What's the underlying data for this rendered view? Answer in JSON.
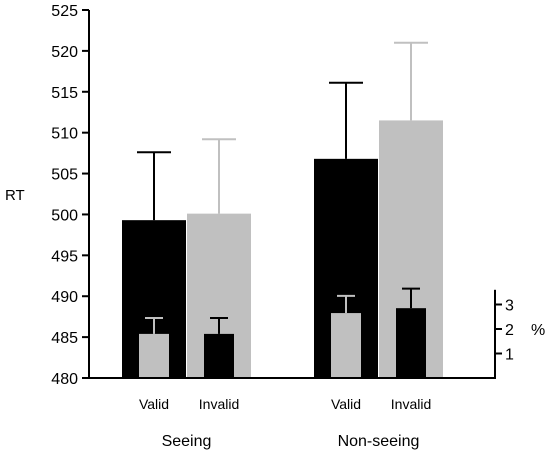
{
  "chart_data": {
    "type": "bar",
    "ylabel": "RT",
    "ylim": [
      480,
      525
    ],
    "yticks": [
      480,
      485,
      490,
      495,
      500,
      505,
      510,
      515,
      520,
      525
    ],
    "groups": [
      "Seeing",
      "Non-seeing"
    ],
    "categories": [
      "Valid",
      "Invalid"
    ],
    "series": [
      {
        "group": "Seeing",
        "category": "Valid",
        "value": 499.3,
        "error": 8.3,
        "color": "#000000"
      },
      {
        "group": "Seeing",
        "category": "Invalid",
        "value": 500.1,
        "error": 9.1,
        "color": "#c0c0c0"
      },
      {
        "group": "Non-seeing",
        "category": "Valid",
        "value": 506.8,
        "error": 9.3,
        "color": "#000000"
      },
      {
        "group": "Non-seeing",
        "category": "Invalid",
        "value": 511.5,
        "error": 9.5,
        "color": "#c0c0c0"
      }
    ],
    "secondary_axis": {
      "label": "%",
      "ticks": [
        1,
        2,
        3
      ],
      "range": [
        0,
        3.6
      ],
      "series": [
        {
          "group": "Seeing",
          "category": "Valid",
          "value": 1.8,
          "error": 0.65,
          "color": "#c0c0c0"
        },
        {
          "group": "Seeing",
          "category": "Invalid",
          "value": 1.8,
          "error": 0.65,
          "color": "#000000"
        },
        {
          "group": "Non-seeing",
          "category": "Valid",
          "value": 2.65,
          "error": 0.7,
          "color": "#c0c0c0"
        },
        {
          "group": "Non-seeing",
          "category": "Invalid",
          "value": 2.85,
          "error": 0.8,
          "color": "#000000"
        }
      ]
    }
  }
}
